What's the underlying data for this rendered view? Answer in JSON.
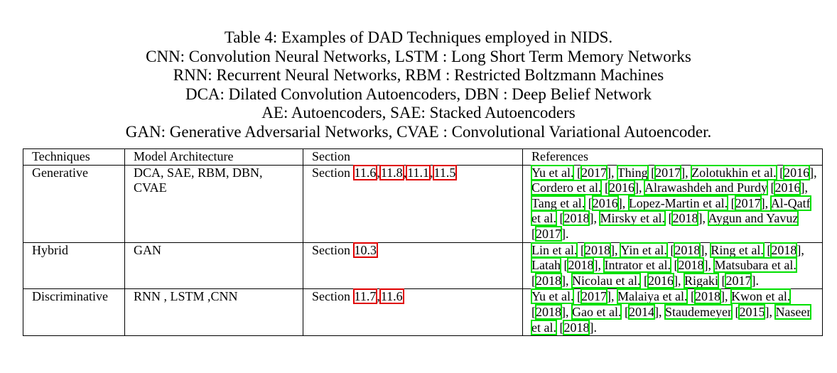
{
  "caption": {
    "lines": [
      "Table 4: Examples of DAD Techniques employed in NIDS.",
      "CNN: Convolution Neural Networks, LSTM : Long Short Term Memory Networks",
      "RNN: Recurrent Neural Networks, RBM : Restricted Boltzmann Machines",
      "DCA: Dilated Convolution Autoencoders, DBN : Deep Belief Network",
      "AE: Autoencoders, SAE: Stacked Autoencoders",
      "GAN: Generative Adversarial Networks, CVAE : Convolutional Variational Autoencoder."
    ]
  },
  "table": {
    "headers": [
      "Techniques",
      "Model Architecture",
      "Section",
      "References"
    ],
    "section_prefix": "Section",
    "rows": [
      {
        "technique": "Generative",
        "model": "DCA, SAE, RBM, DBN, CVAE",
        "sections": [
          "11.6",
          "11.8",
          "11.1",
          "11.5"
        ],
        "references": [
          {
            "author": "Yu et al.",
            "year": "2017"
          },
          {
            "author": "Thing",
            "year": "2017"
          },
          {
            "author": "Zolotukhin et al.",
            "year": "2016"
          },
          {
            "author": "Cordero et al.",
            "year": "2016"
          },
          {
            "author": "Alrawashdeh and Purdy",
            "year": "2016"
          },
          {
            "author": "Tang et al.",
            "year": "2016"
          },
          {
            "author": "Lopez-Martin et al.",
            "year": "2017"
          },
          {
            "author": "Al-Qatf et al.",
            "year": "2018"
          },
          {
            "author": "Mirsky et al.",
            "year": "2018"
          },
          {
            "author": "Aygun and Yavuz",
            "year": "2017"
          }
        ]
      },
      {
        "technique": "Hybrid",
        "model": "GAN",
        "sections": [
          "10.3"
        ],
        "references": [
          {
            "author": "Lin et al.",
            "year": "2018"
          },
          {
            "author": "Yin et al.",
            "year": "2018"
          },
          {
            "author": "Ring et al.",
            "year": "2018"
          },
          {
            "author": "Latah",
            "year": "2018"
          },
          {
            "author": "Intrator et al.",
            "year": "2018"
          },
          {
            "author": "Matsubara et al.",
            "year": "2018"
          },
          {
            "author": "Nicolau et al.",
            "year": "2016"
          },
          {
            "author": "Rigaki",
            "year": "2017"
          }
        ]
      },
      {
        "technique": "Discriminative",
        "model": "RNN , LSTM ,CNN",
        "sections": [
          "11.7",
          "11.6"
        ],
        "references": [
          {
            "author": "Yu et al.",
            "year": "2017"
          },
          {
            "author": "Malaiya et al.",
            "year": "2018"
          },
          {
            "author": "Kwon et al.",
            "year": "2018"
          },
          {
            "author": "Gao et al.",
            "year": "2014"
          },
          {
            "author": "Staudemeyer",
            "year": "2015"
          },
          {
            "author": "Naseer et al.",
            "year": "2018"
          }
        ]
      }
    ]
  },
  "colors": {
    "citation_box": "#00e000",
    "section_box": "#e00000"
  }
}
